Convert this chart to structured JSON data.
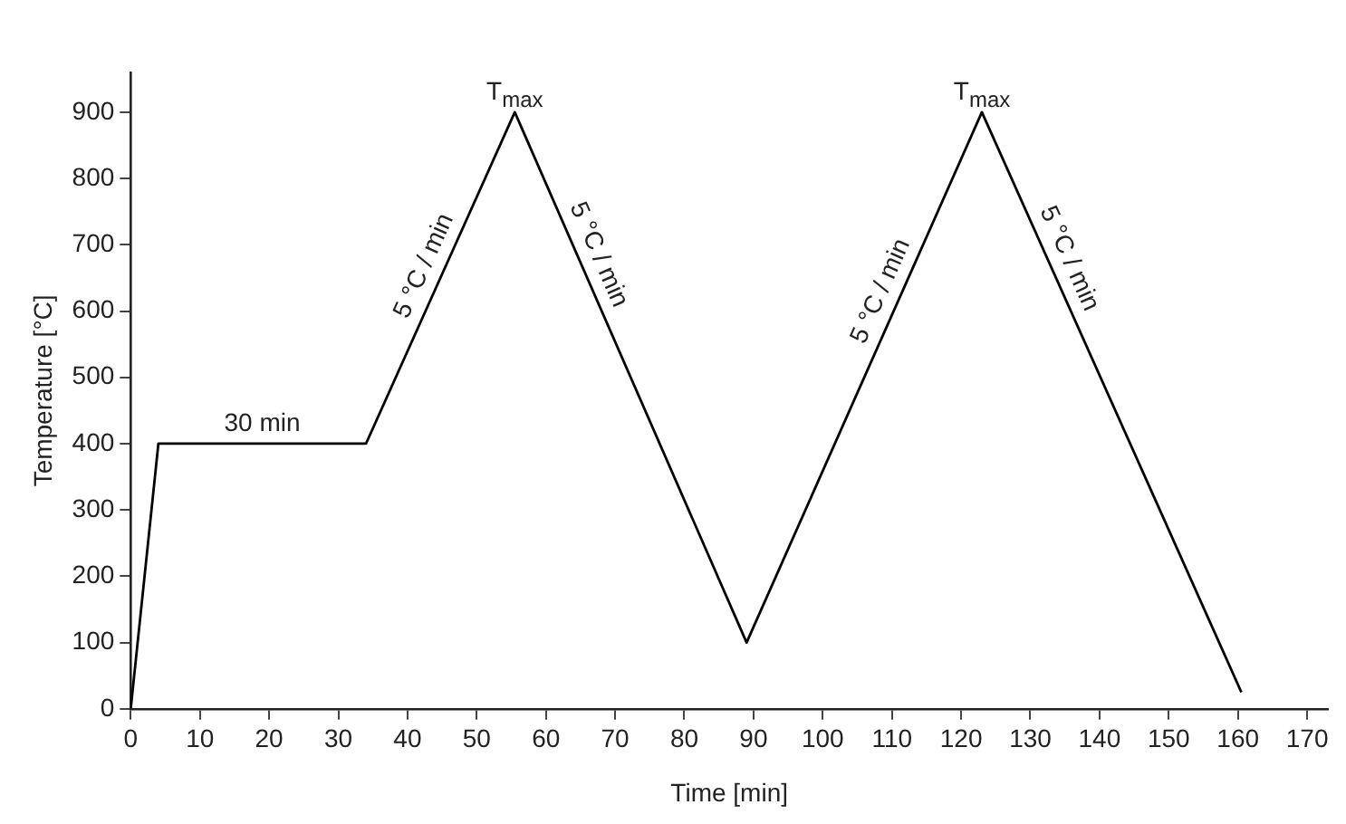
{
  "chart_data": {
    "type": "line",
    "xlabel": "Time [min]",
    "ylabel": "Temperature [°C]",
    "x": [
      0,
      4,
      34,
      55.5,
      89,
      123,
      160.5
    ],
    "series": [
      {
        "color": "#000000",
        "values": [
          0,
          400,
          400,
          900,
          100,
          900,
          25
        ]
      }
    ],
    "xlim": [
      0,
      173
    ],
    "ylim": [
      0,
      960
    ],
    "xticks": [
      0,
      10,
      20,
      30,
      40,
      50,
      60,
      70,
      80,
      90,
      100,
      110,
      120,
      130,
      140,
      150,
      160,
      170
    ],
    "yticks": [
      0,
      100,
      200,
      300,
      400,
      500,
      600,
      700,
      800,
      900
    ],
    "grid": false,
    "legend": false,
    "marker": "none",
    "line_style": "solid",
    "annotations": [
      {
        "text": "30 min",
        "x": 19,
        "y": 400
      },
      {
        "text": "T$_{max}$",
        "x": 55.5,
        "y": 900
      },
      {
        "text": "5 °C / min",
        "x": 45,
        "y": 656
      },
      {
        "text": "5 °C / min",
        "x": 65,
        "y": 673
      },
      {
        "text": "T$_{max}$",
        "x": 123,
        "y": 900
      },
      {
        "text": "5 °C / min",
        "x": 111,
        "y": 618
      },
      {
        "text": "5 °C / min",
        "x": 133,
        "y": 667
      }
    ]
  }
}
